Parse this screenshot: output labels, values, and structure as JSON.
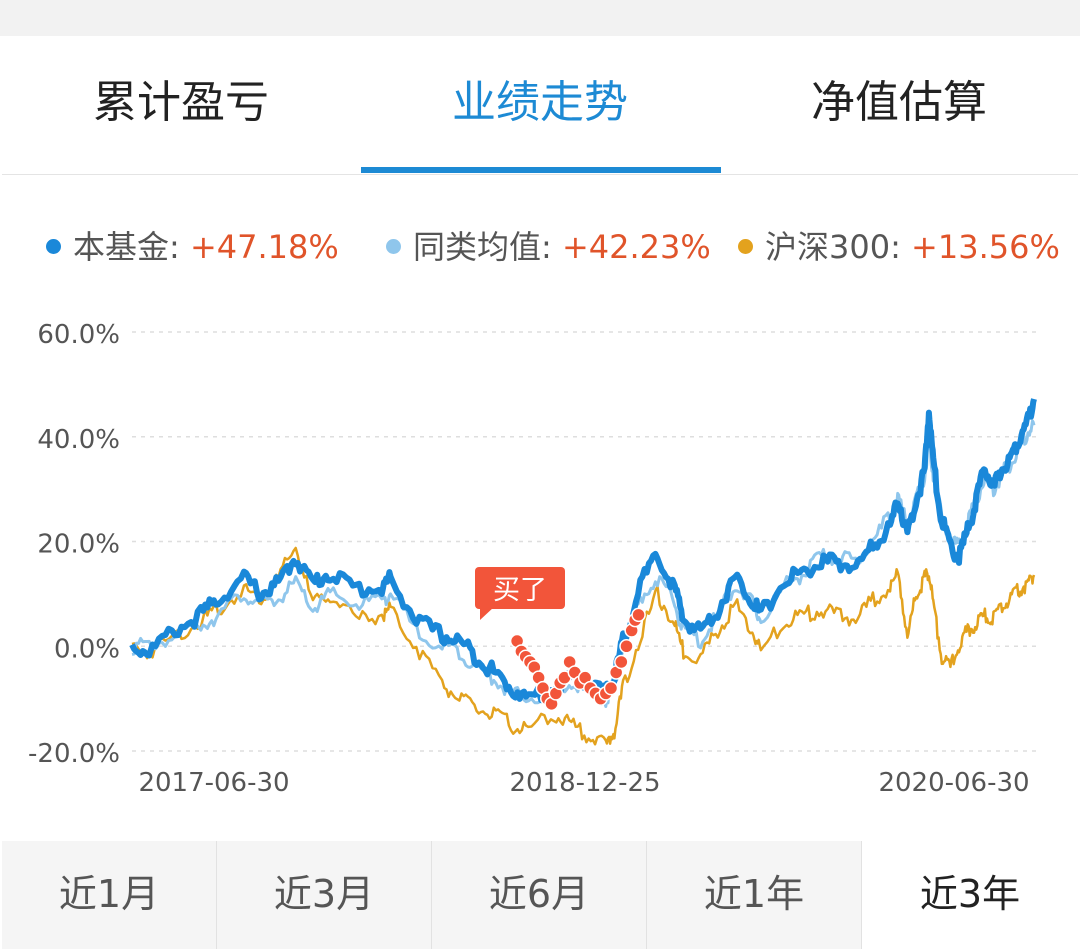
{
  "tabs": [
    {
      "label": "累计盈亏"
    },
    {
      "label": "业绩走势"
    },
    {
      "label": "净值估算"
    }
  ],
  "active_tab": 1,
  "legend": [
    {
      "label": "本基金:",
      "value": "+47.18%",
      "color": "#1a88d9"
    },
    {
      "label": "同类均值:",
      "value": "+42.23%",
      "color": "#8fc6ec"
    },
    {
      "label": "沪深300:",
      "value": "+13.56%",
      "color": "#e3a21e"
    }
  ],
  "ranges": [
    {
      "label": "近1月"
    },
    {
      "label": "近3月"
    },
    {
      "label": "近6月"
    },
    {
      "label": "近1年"
    },
    {
      "label": "近3年"
    }
  ],
  "active_range": 4,
  "buy_marker": {
    "label": "买了",
    "color": "#f2553a"
  },
  "chart_data": {
    "type": "line",
    "ylim": [
      -20,
      60
    ],
    "yticks": [
      "60.0%",
      "40.0%",
      "20.0%",
      "0.0%",
      "-20.0%"
    ],
    "ytick_values": [
      60,
      40,
      20,
      0,
      -20
    ],
    "x_tick_labels": [
      "2017-06-30",
      "2018-12-25",
      "2020-06-30"
    ],
    "x_tick_positions": [
      0,
      0.5,
      1
    ],
    "grid": true,
    "series": [
      {
        "name": "本基金",
        "color": "#1a88d9",
        "end_value": 47.18,
        "points": [
          [
            0.0,
            0
          ],
          [
            0.02,
            -1
          ],
          [
            0.05,
            3
          ],
          [
            0.08,
            6
          ],
          [
            0.1,
            9
          ],
          [
            0.13,
            13
          ],
          [
            0.15,
            10
          ],
          [
            0.17,
            12
          ],
          [
            0.19,
            17
          ],
          [
            0.21,
            12
          ],
          [
            0.23,
            14
          ],
          [
            0.26,
            11
          ],
          [
            0.29,
            11
          ],
          [
            0.3,
            13
          ],
          [
            0.33,
            5
          ],
          [
            0.36,
            2
          ],
          [
            0.38,
            1
          ],
          [
            0.4,
            -2
          ],
          [
            0.42,
            -5
          ],
          [
            0.44,
            -8
          ],
          [
            0.46,
            -10
          ],
          [
            0.49,
            -8
          ],
          [
            0.51,
            -6
          ],
          [
            0.53,
            -7
          ],
          [
            0.55,
            -9
          ],
          [
            0.56,
            -6
          ],
          [
            0.57,
            1
          ],
          [
            0.59,
            12
          ],
          [
            0.61,
            17
          ],
          [
            0.63,
            11
          ],
          [
            0.64,
            5
          ],
          [
            0.66,
            3
          ],
          [
            0.68,
            7
          ],
          [
            0.7,
            13
          ],
          [
            0.72,
            9
          ],
          [
            0.73,
            6
          ],
          [
            0.76,
            13
          ],
          [
            0.78,
            14
          ],
          [
            0.8,
            16
          ],
          [
            0.82,
            16
          ],
          [
            0.84,
            15
          ],
          [
            0.86,
            19
          ],
          [
            0.88,
            23
          ],
          [
            0.89,
            28
          ],
          [
            0.9,
            21
          ],
          [
            0.91,
            28
          ],
          [
            0.92,
            33
          ],
          [
            0.925,
            45
          ],
          [
            0.93,
            35
          ],
          [
            0.94,
            24
          ],
          [
            0.95,
            19
          ],
          [
            0.96,
            17
          ],
          [
            0.97,
            22
          ],
          [
            0.98,
            28
          ],
          [
            0.99,
            34
          ],
          [
            1.0,
            30
          ],
          [
            1.01,
            34
          ],
          [
            1.02,
            36
          ],
          [
            1.03,
            40
          ],
          [
            1.04,
            43
          ],
          [
            1.047,
            47.2
          ]
        ]
      },
      {
        "name": "同类均值",
        "color": "#8fc6ec",
        "end_value": 42.23,
        "points": [
          [
            0.0,
            0
          ],
          [
            0.02,
            0
          ],
          [
            0.05,
            2
          ],
          [
            0.08,
            4
          ],
          [
            0.1,
            6
          ],
          [
            0.13,
            10
          ],
          [
            0.15,
            8
          ],
          [
            0.17,
            9
          ],
          [
            0.19,
            12
          ],
          [
            0.21,
            7
          ],
          [
            0.23,
            10
          ],
          [
            0.26,
            8
          ],
          [
            0.29,
            9
          ],
          [
            0.3,
            10
          ],
          [
            0.33,
            3
          ],
          [
            0.36,
            0
          ],
          [
            0.38,
            -1
          ],
          [
            0.4,
            -4
          ],
          [
            0.42,
            -6
          ],
          [
            0.44,
            -9
          ],
          [
            0.46,
            -10
          ],
          [
            0.49,
            -9
          ],
          [
            0.51,
            -7
          ],
          [
            0.53,
            -8
          ],
          [
            0.55,
            -10
          ],
          [
            0.56,
            -7
          ],
          [
            0.57,
            0
          ],
          [
            0.59,
            9
          ],
          [
            0.61,
            13
          ],
          [
            0.63,
            8
          ],
          [
            0.64,
            3
          ],
          [
            0.66,
            1
          ],
          [
            0.68,
            6
          ],
          [
            0.7,
            12
          ],
          [
            0.72,
            8
          ],
          [
            0.73,
            5
          ],
          [
            0.76,
            12
          ],
          [
            0.78,
            14
          ],
          [
            0.8,
            17
          ],
          [
            0.82,
            17
          ],
          [
            0.84,
            16
          ],
          [
            0.86,
            20
          ],
          [
            0.88,
            25
          ],
          [
            0.89,
            28
          ],
          [
            0.9,
            23
          ],
          [
            0.91,
            28
          ],
          [
            0.92,
            32
          ],
          [
            0.925,
            40
          ],
          [
            0.93,
            33
          ],
          [
            0.94,
            25
          ],
          [
            0.95,
            20
          ],
          [
            0.96,
            19
          ],
          [
            0.97,
            24
          ],
          [
            0.98,
            28
          ],
          [
            0.99,
            32
          ],
          [
            1.0,
            30
          ],
          [
            1.01,
            33
          ],
          [
            1.02,
            35
          ],
          [
            1.03,
            38
          ],
          [
            1.04,
            41
          ],
          [
            1.047,
            42.2
          ]
        ]
      },
      {
        "name": "沪深300",
        "color": "#e3a21e",
        "end_value": 13.56,
        "points": [
          [
            0.0,
            0
          ],
          [
            0.02,
            -1
          ],
          [
            0.05,
            2
          ],
          [
            0.08,
            5
          ],
          [
            0.1,
            7
          ],
          [
            0.13,
            11
          ],
          [
            0.15,
            9
          ],
          [
            0.17,
            13
          ],
          [
            0.19,
            19
          ],
          [
            0.21,
            8
          ],
          [
            0.23,
            10
          ],
          [
            0.26,
            5
          ],
          [
            0.29,
            6
          ],
          [
            0.3,
            7
          ],
          [
            0.33,
            0
          ],
          [
            0.36,
            -7
          ],
          [
            0.38,
            -10
          ],
          [
            0.4,
            -12
          ],
          [
            0.42,
            -13
          ],
          [
            0.44,
            -15
          ],
          [
            0.46,
            -16
          ],
          [
            0.49,
            -13
          ],
          [
            0.51,
            -15
          ],
          [
            0.53,
            -17
          ],
          [
            0.55,
            -19
          ],
          [
            0.56,
            -16
          ],
          [
            0.57,
            -8
          ],
          [
            0.59,
            2
          ],
          [
            0.61,
            10
          ],
          [
            0.63,
            4
          ],
          [
            0.64,
            -1
          ],
          [
            0.66,
            -2
          ],
          [
            0.68,
            3
          ],
          [
            0.7,
            8
          ],
          [
            0.72,
            3
          ],
          [
            0.73,
            -1
          ],
          [
            0.76,
            5
          ],
          [
            0.78,
            6
          ],
          [
            0.8,
            7
          ],
          [
            0.82,
            6
          ],
          [
            0.84,
            5
          ],
          [
            0.86,
            9
          ],
          [
            0.88,
            11
          ],
          [
            0.89,
            14
          ],
          [
            0.9,
            1
          ],
          [
            0.91,
            10
          ],
          [
            0.92,
            13
          ],
          [
            0.925,
            14
          ],
          [
            0.93,
            8
          ],
          [
            0.94,
            -2
          ],
          [
            0.95,
            -4
          ],
          [
            0.96,
            0
          ],
          [
            0.97,
            3
          ],
          [
            0.98,
            4
          ],
          [
            0.99,
            6
          ],
          [
            1.0,
            5
          ],
          [
            1.01,
            8
          ],
          [
            1.02,
            9
          ],
          [
            1.03,
            11
          ],
          [
            1.04,
            12
          ],
          [
            1.047,
            13.6
          ]
        ]
      }
    ],
    "buy_points": [
      [
        0.447,
        1
      ],
      [
        0.452,
        -1
      ],
      [
        0.457,
        -2
      ],
      [
        0.462,
        -3
      ],
      [
        0.467,
        -4
      ],
      [
        0.472,
        -6
      ],
      [
        0.477,
        -8
      ],
      [
        0.482,
        -10
      ],
      [
        0.487,
        -11
      ],
      [
        0.492,
        -9
      ],
      [
        0.497,
        -7
      ],
      [
        0.502,
        -6
      ],
      [
        0.508,
        -3
      ],
      [
        0.514,
        -5
      ],
      [
        0.52,
        -7
      ],
      [
        0.526,
        -6
      ],
      [
        0.532,
        -8
      ],
      [
        0.538,
        -9
      ],
      [
        0.544,
        -10
      ],
      [
        0.55,
        -9
      ],
      [
        0.556,
        -8
      ],
      [
        0.562,
        -5
      ],
      [
        0.568,
        -3
      ],
      [
        0.574,
        0
      ],
      [
        0.58,
        3
      ],
      [
        0.584,
        5
      ],
      [
        0.588,
        6
      ]
    ]
  }
}
